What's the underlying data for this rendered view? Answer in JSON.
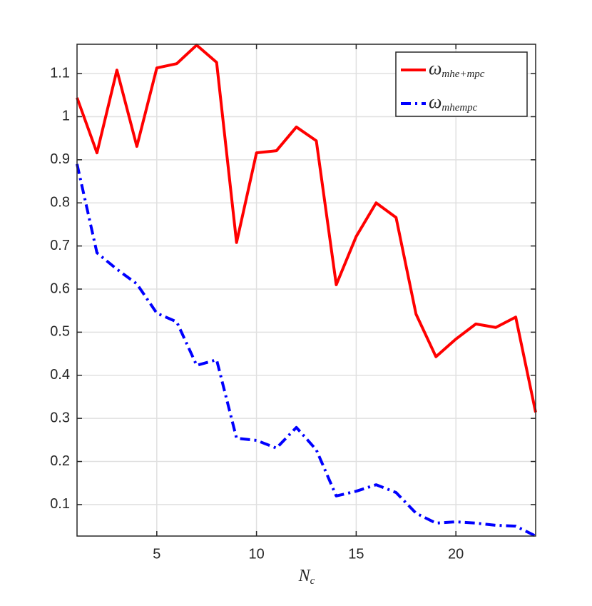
{
  "chart_data": {
    "type": "line",
    "x_label": "Nc",
    "x": [
      1,
      2,
      3,
      4,
      5,
      6,
      7,
      8,
      9,
      10,
      11,
      12,
      13,
      14,
      15,
      16,
      17,
      18,
      19,
      20,
      21,
      22,
      23,
      24
    ],
    "series": [
      {
        "name": "ωmhe+mpc",
        "color": "#ff0000",
        "dash": "solid",
        "values": [
          1.044,
          0.916,
          1.108,
          0.931,
          1.113,
          1.123,
          1.166,
          1.126,
          0.708,
          0.916,
          0.921,
          0.976,
          0.944,
          0.61,
          0.722,
          0.8,
          0.766,
          0.542,
          0.443,
          0.484,
          0.519,
          0.511,
          0.535,
          0.314
        ]
      },
      {
        "name": "ωmhempc",
        "color": "#0000ff",
        "dash": "dashdot",
        "values": [
          0.89,
          0.684,
          0.646,
          0.612,
          0.544,
          0.524,
          0.423,
          0.436,
          0.254,
          0.249,
          0.231,
          0.279,
          0.227,
          0.12,
          0.131,
          0.146,
          0.128,
          0.08,
          0.057,
          0.06,
          0.057,
          0.052,
          0.05,
          0.027
        ]
      }
    ],
    "xlim": [
      1,
      24
    ],
    "ylim": [
      0.027,
      1.168
    ],
    "xticks": [
      5,
      10,
      15,
      20
    ],
    "yticks": [
      0.1,
      0.2,
      0.3,
      0.4,
      0.5,
      0.6,
      0.7,
      0.8,
      0.9,
      1,
      1.1
    ],
    "grid": true,
    "legend": "northeast"
  }
}
